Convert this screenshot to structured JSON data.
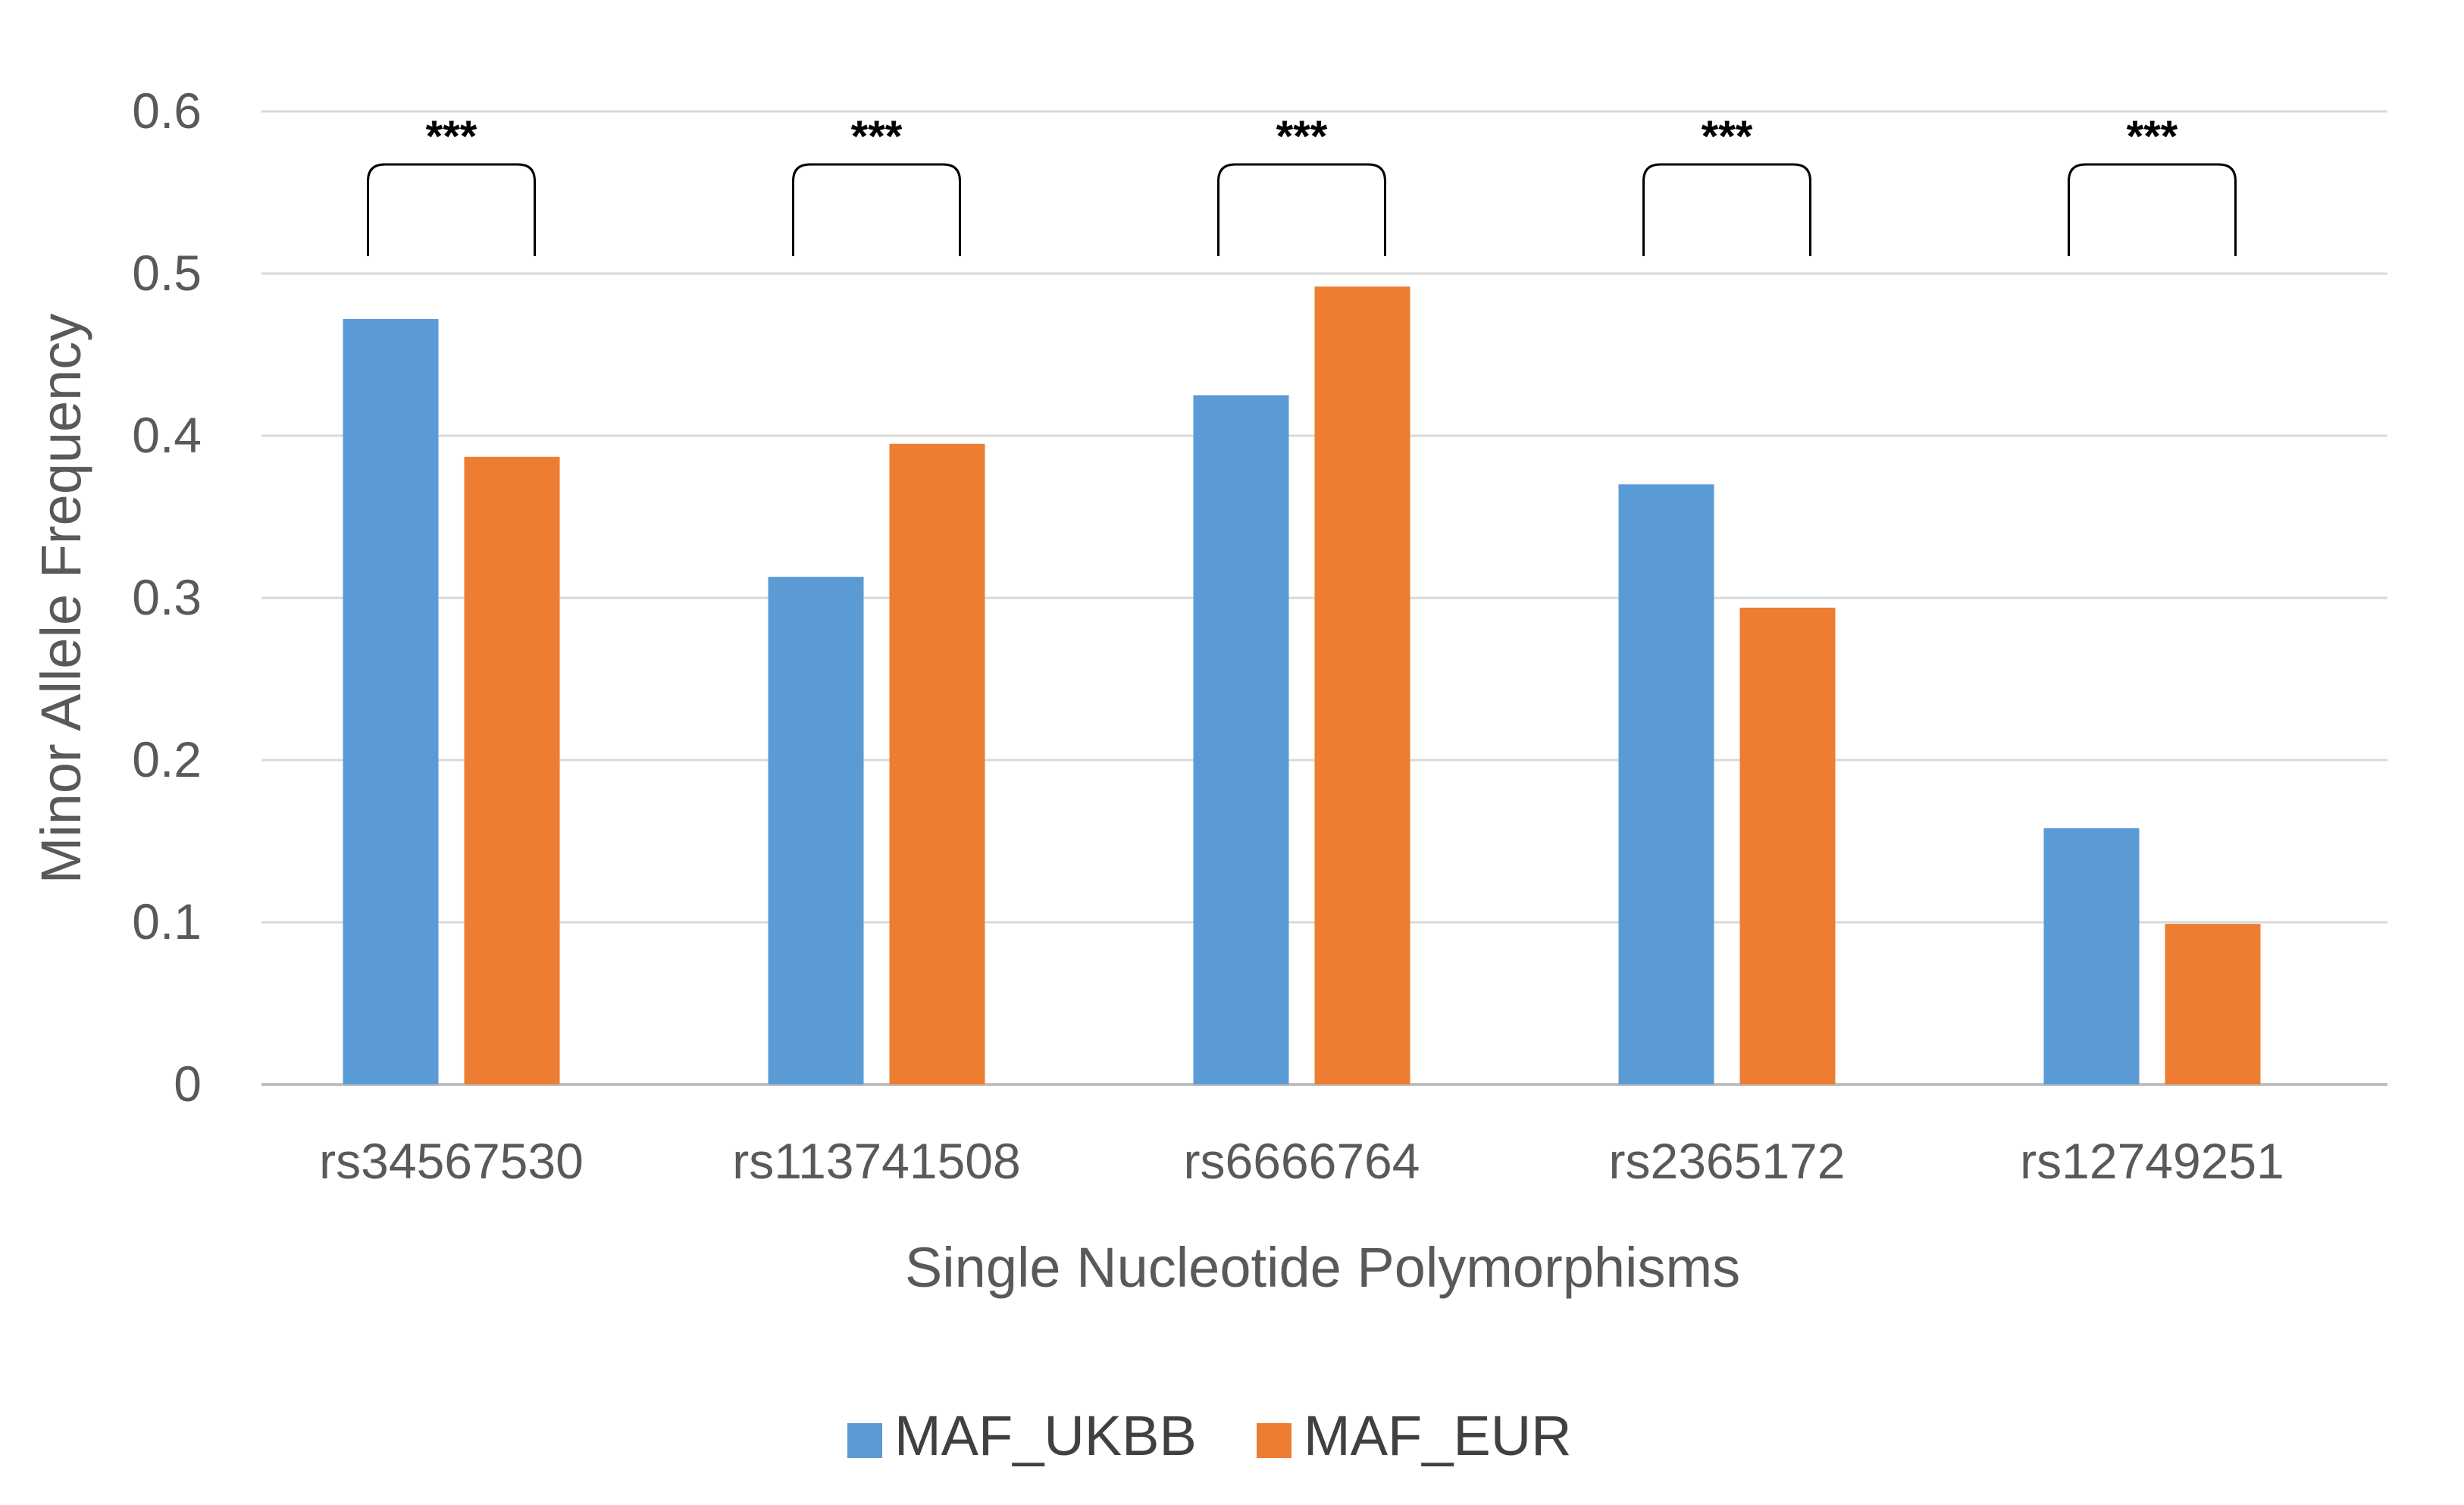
{
  "chart_data": {
    "type": "bar",
    "categories": [
      "rs34567530",
      "rs113741508",
      "rs6666764",
      "rs2365172",
      "rs12749251"
    ],
    "series": [
      {
        "name": "MAF_UKBB",
        "color": "#5B9BD5",
        "values": [
          0.472,
          0.313,
          0.425,
          0.37,
          0.158
        ]
      },
      {
        "name": "MAF_EUR",
        "color": "#ED7D31",
        "values": [
          0.387,
          0.395,
          0.492,
          0.294,
          0.099
        ]
      }
    ],
    "title": "",
    "xlabel": "Single Nucleotide Polymorphisms",
    "ylabel": "Minor Allele Frequency",
    "ylim": [
      0,
      0.6
    ],
    "yticks": [
      "0",
      "0.1",
      "0.2",
      "0.3",
      "0.4",
      "0.5",
      "0.6"
    ],
    "grid": true,
    "legend_position": "bottom",
    "annotations": [
      "***",
      "***",
      "***",
      "***",
      "***"
    ]
  }
}
